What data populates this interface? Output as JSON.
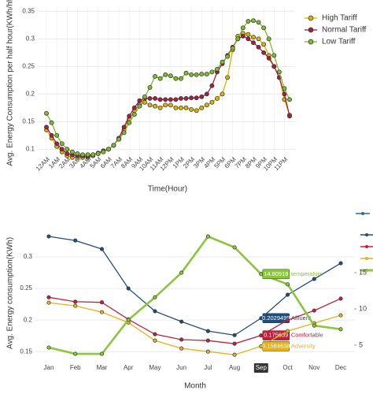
{
  "chart_data": [
    {
      "type": "line",
      "y_label": "Avg. Energy Consumption per half hour(KWh/hh)",
      "x_label": "Time(Hour)",
      "categories": [
        "12AM",
        null,
        "1AM",
        null,
        "2AM",
        null,
        "3AM",
        null,
        "4AM",
        null,
        "5AM",
        null,
        "6AM",
        null,
        "7AM",
        null,
        "8AM",
        null,
        "9AM",
        null,
        "10AM",
        null,
        "11AM",
        null,
        "12PM",
        null,
        "1PM",
        null,
        "2PM",
        null,
        "3PM",
        null,
        "4PM",
        null,
        "5PM",
        null,
        "6PM",
        null,
        "7PM",
        null,
        "8PM",
        null,
        "9PM",
        null,
        "10PM",
        null,
        "11PM",
        null
      ],
      "ylim": [
        0.089,
        0.359
      ],
      "yticks": [
        0.1,
        0.15,
        0.2,
        0.25,
        0.3,
        0.35
      ],
      "grid": true,
      "legend": "right",
      "series": [
        {
          "name": "High Tariff",
          "color": "#d9b300",
          "values": [
            0.135,
            0.12,
            0.105,
            0.095,
            0.088,
            0.085,
            0.085,
            0.085,
            0.085,
            0.088,
            0.092,
            0.097,
            0.1,
            0.107,
            0.118,
            0.135,
            0.155,
            0.17,
            0.18,
            0.185,
            0.18,
            0.178,
            0.175,
            0.18,
            0.18,
            0.175,
            0.175,
            0.175,
            0.172,
            0.17,
            0.175,
            0.18,
            0.185,
            0.192,
            0.2,
            0.23,
            0.28,
            0.305,
            0.31,
            0.308,
            0.303,
            0.3,
            0.29,
            0.27,
            0.25,
            0.23,
            0.19,
            0.162
          ]
        },
        {
          "name": "Normal Tariff",
          "color": "#a3203f",
          "values": [
            0.14,
            0.125,
            0.11,
            0.1,
            0.092,
            0.09,
            0.088,
            0.088,
            0.087,
            0.09,
            0.093,
            0.097,
            0.1,
            0.107,
            0.12,
            0.14,
            0.16,
            0.175,
            0.188,
            0.192,
            0.192,
            0.192,
            0.19,
            0.19,
            0.19,
            0.19,
            0.192,
            0.192,
            0.193,
            0.193,
            0.195,
            0.2,
            0.215,
            0.24,
            0.255,
            0.27,
            0.285,
            0.3,
            0.305,
            0.3,
            0.293,
            0.285,
            0.275,
            0.265,
            0.25,
            0.23,
            0.2,
            0.16
          ]
        },
        {
          "name": "Low Tariff",
          "color": "#7dba32",
          "values": [
            0.165,
            0.148,
            0.125,
            0.11,
            0.1,
            0.095,
            0.092,
            0.09,
            0.09,
            0.09,
            0.092,
            0.095,
            0.1,
            0.107,
            0.118,
            0.13,
            0.148,
            0.163,
            0.178,
            0.195,
            0.212,
            0.232,
            0.228,
            0.235,
            0.233,
            0.228,
            0.228,
            0.238,
            0.235,
            0.235,
            0.236,
            0.236,
            0.24,
            0.245,
            0.258,
            0.268,
            0.283,
            0.3,
            0.32,
            0.332,
            0.333,
            0.33,
            0.32,
            0.3,
            0.27,
            0.24,
            0.21,
            0.19
          ]
        }
      ]
    },
    {
      "type": "line",
      "y_label": "Avg. Energy consumption(KWh)",
      "x_label": "Month",
      "categories": [
        "Jan",
        "Feb",
        "Mar",
        "Apr",
        "May",
        "Jun",
        "Jul",
        "Aug",
        "Sep",
        "Oct",
        "Nov",
        "Dec"
      ],
      "highlight_index": 8,
      "ylim": [
        0.139,
        0.345
      ],
      "yticks": [
        0.15,
        0.2,
        0.25,
        0.3
      ],
      "y2lim": [
        3.15,
        21.1
      ],
      "y2ticks": [
        5,
        10,
        15
      ],
      "series": [
        {
          "name": "Affluent",
          "color": "#1f4e79",
          "values": [
            0.3325,
            0.326,
            0.3125,
            0.25,
            0.214,
            0.1975,
            0.1825,
            0.176,
            0.2029499,
            0.24,
            0.265,
            0.29
          ]
        },
        {
          "name": "Comfortable",
          "color": "#c0223b",
          "values": [
            0.236,
            0.229,
            0.228,
            0.201,
            0.1775,
            0.169,
            0.1675,
            0.1625,
            0.175639,
            0.2,
            0.215,
            0.234
          ]
        },
        {
          "name": "Adversity",
          "color": "#e3b21c",
          "values": [
            0.2275,
            0.2225,
            0.2125,
            0.196,
            0.1675,
            0.155,
            0.15,
            0.145,
            0.1584638,
            0.1825,
            0.195,
            0.2075
          ]
        },
        {
          "name": "temperature",
          "color": "#8cc63f",
          "axis": "y2",
          "values": [
            4.67,
            3.8,
            3.8,
            8.5,
            11.6,
            15,
            20,
            18.5,
            14.80918,
            13.4,
            7.7,
            7.2
          ]
        }
      ]
    }
  ]
}
